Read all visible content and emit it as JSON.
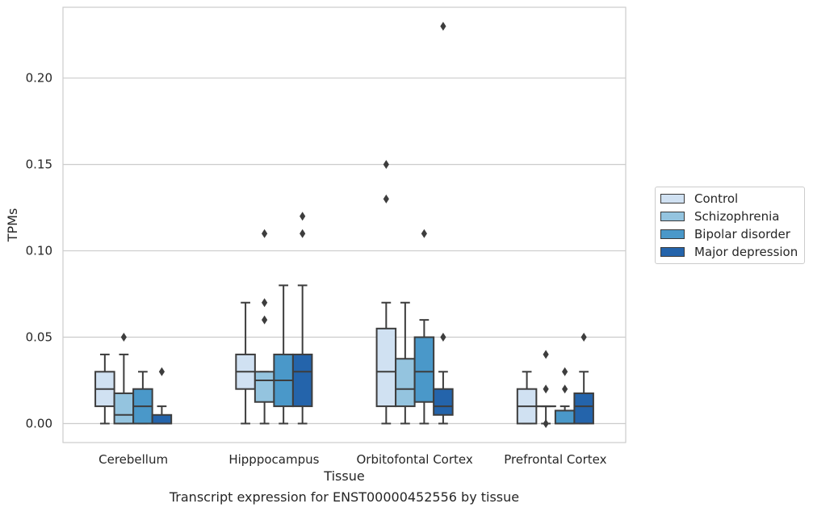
{
  "caption": "Transcript expression for ENST00000452556 by tissue",
  "chart_data": {
    "type": "box",
    "title": "",
    "xlabel": "Tissue",
    "ylabel": "TPMs",
    "ylim": [
      -0.011,
      0.241
    ],
    "yticks": [
      "0.00",
      "0.05",
      "0.10",
      "0.15",
      "0.20"
    ],
    "grid": "horizontal",
    "legend_position": "right",
    "categories": [
      "Cerebellum",
      "Hipppocampus",
      "Orbitofontal Cortex",
      "Prefrontal Cortex"
    ],
    "series": [
      {
        "name": "Control",
        "color": "#d0e1f2",
        "boxes": [
          {
            "whislo": 0.0,
            "q1": 0.01,
            "med": 0.02,
            "q3": 0.03,
            "whishi": 0.04,
            "fliers": []
          },
          {
            "whislo": 0.0,
            "q1": 0.02,
            "med": 0.03,
            "q3": 0.04,
            "whishi": 0.07,
            "fliers": []
          },
          {
            "whislo": 0.0,
            "q1": 0.01,
            "med": 0.03,
            "q3": 0.055,
            "whishi": 0.07,
            "fliers": [
              0.13,
              0.15
            ]
          },
          {
            "whislo": 0.0,
            "q1": 0.0,
            "med": 0.01,
            "q3": 0.02,
            "whishi": 0.03,
            "fliers": []
          }
        ]
      },
      {
        "name": "Schizophrenia",
        "color": "#94c4df",
        "boxes": [
          {
            "whislo": 0.0,
            "q1": 0.0,
            "med": 0.005,
            "q3": 0.0175,
            "whishi": 0.04,
            "fliers": [
              0.05
            ]
          },
          {
            "whislo": 0.0,
            "q1": 0.0125,
            "med": 0.025,
            "q3": 0.03,
            "whishi": 0.03,
            "fliers": [
              0.06,
              0.07,
              0.11
            ]
          },
          {
            "whislo": 0.0,
            "q1": 0.01,
            "med": 0.02,
            "q3": 0.0375,
            "whishi": 0.07,
            "fliers": []
          },
          {
            "whislo": 0.0,
            "q1": 0.01,
            "med": 0.01,
            "q3": 0.01,
            "whishi": 0.01,
            "fliers": [
              0.0,
              0.02,
              0.04
            ]
          }
        ]
      },
      {
        "name": "Bipolar disorder",
        "color": "#4a98c9",
        "boxes": [
          {
            "whislo": 0.0,
            "q1": 0.0,
            "med": 0.01,
            "q3": 0.02,
            "whishi": 0.03,
            "fliers": []
          },
          {
            "whislo": 0.0,
            "q1": 0.01,
            "med": 0.025,
            "q3": 0.04,
            "whishi": 0.08,
            "fliers": []
          },
          {
            "whislo": 0.0,
            "q1": 0.0125,
            "med": 0.03,
            "q3": 0.05,
            "whishi": 0.06,
            "fliers": [
              0.11
            ]
          },
          {
            "whislo": 0.0,
            "q1": 0.0,
            "med": 0.0,
            "q3": 0.0075,
            "whishi": 0.01,
            "fliers": [
              0.02,
              0.03
            ]
          }
        ]
      },
      {
        "name": "Major depression",
        "color": "#2464ab",
        "boxes": [
          {
            "whislo": 0.0,
            "q1": 0.0,
            "med": 0.0,
            "q3": 0.005,
            "whishi": 0.01,
            "fliers": [
              0.03
            ]
          },
          {
            "whislo": 0.0,
            "q1": 0.01,
            "med": 0.03,
            "q3": 0.04,
            "whishi": 0.08,
            "fliers": [
              0.11,
              0.12
            ]
          },
          {
            "whislo": 0.0,
            "q1": 0.005,
            "med": 0.01,
            "q3": 0.02,
            "whishi": 0.03,
            "fliers": [
              0.05,
              0.23
            ]
          },
          {
            "whislo": 0.0,
            "q1": 0.0,
            "med": 0.01,
            "q3": 0.0175,
            "whishi": 0.03,
            "fliers": [
              0.05
            ]
          }
        ]
      }
    ]
  }
}
